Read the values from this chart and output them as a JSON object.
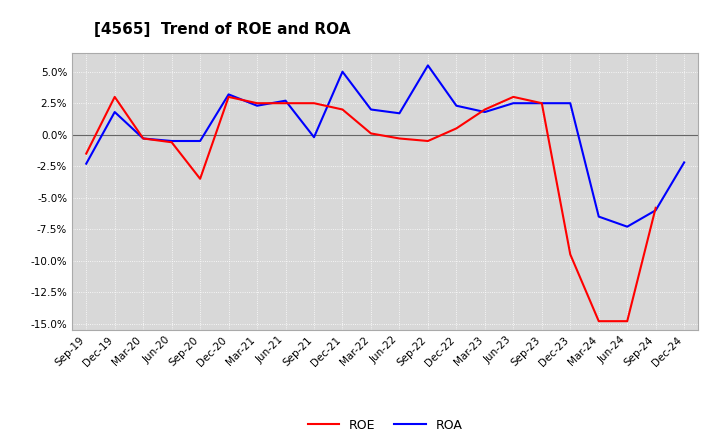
{
  "title": "[4565]  Trend of ROE and ROA",
  "x_labels": [
    "Sep-19",
    "Dec-19",
    "Mar-20",
    "Jun-20",
    "Sep-20",
    "Dec-20",
    "Mar-21",
    "Jun-21",
    "Sep-21",
    "Dec-21",
    "Mar-22",
    "Jun-22",
    "Sep-22",
    "Dec-22",
    "Mar-23",
    "Jun-23",
    "Sep-23",
    "Dec-23",
    "Mar-24",
    "Jun-24",
    "Sep-24",
    "Dec-24"
  ],
  "roe": [
    -1.5,
    3.0,
    -0.3,
    -0.6,
    -3.5,
    3.0,
    2.5,
    2.5,
    2.5,
    2.0,
    0.1,
    -0.3,
    -0.5,
    0.5,
    2.0,
    3.0,
    2.5,
    -9.5,
    -14.8,
    -14.8,
    -5.8,
    null
  ],
  "roa": [
    -2.3,
    1.8,
    -0.3,
    -0.5,
    -0.5,
    3.2,
    2.3,
    2.7,
    -0.2,
    5.0,
    2.0,
    1.7,
    5.5,
    2.3,
    1.8,
    2.5,
    2.5,
    2.5,
    -6.5,
    -7.3,
    -6.0,
    -2.2
  ],
  "roe_color": "#ff0000",
  "roa_color": "#0000ff",
  "ylim": [
    -15.5,
    6.5
  ],
  "yticks": [
    -15.0,
    -12.5,
    -10.0,
    -7.5,
    -5.0,
    -2.5,
    0.0,
    2.5,
    5.0
  ],
  "bg_color": "#ffffff",
  "plot_bg_color": "#d8d8d8",
  "grid_color": "#ffffff",
  "title_fontsize": 11,
  "tick_fontsize": 7.5,
  "legend_fontsize": 9
}
